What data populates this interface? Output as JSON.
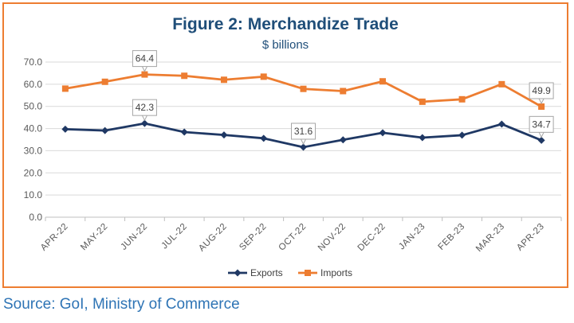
{
  "chart_data": {
    "type": "line",
    "title": "Figure 2: Merchandize Trade",
    "subtitle": "$ billions",
    "categories": [
      "APR-22",
      "MAY-22",
      "JUN-22",
      "JUL-22",
      "AUG-22",
      "SEP-22",
      "OCT-22",
      "NOV-22",
      "DEC-22",
      "JAN-23",
      "FEB-23",
      "MAR-23",
      "APR-23"
    ],
    "series": [
      {
        "name": "Exports",
        "color": "#1F3864",
        "marker": "diamond",
        "values": [
          39.7,
          39.1,
          42.3,
          38.4,
          37.1,
          35.6,
          31.6,
          34.9,
          38.1,
          35.9,
          37.0,
          42.0,
          34.7
        ]
      },
      {
        "name": "Imports",
        "color": "#ED7D31",
        "marker": "square",
        "values": [
          58.0,
          61.1,
          64.4,
          63.8,
          62.0,
          63.4,
          57.9,
          56.9,
          61.3,
          52.1,
          53.2,
          60.0,
          49.9
        ]
      }
    ],
    "annotations": [
      {
        "series": 1,
        "index": 2,
        "label": "64.4"
      },
      {
        "series": 0,
        "index": 2,
        "label": "42.3"
      },
      {
        "series": 0,
        "index": 6,
        "label": "31.6"
      },
      {
        "series": 1,
        "index": 12,
        "label": "49.9"
      },
      {
        "series": 0,
        "index": 12,
        "label": "34.7"
      }
    ],
    "yticks": [
      "0.0",
      "10.0",
      "20.0",
      "30.0",
      "40.0",
      "50.0",
      "60.0",
      "70.0"
    ],
    "ylim": [
      0,
      70
    ],
    "grid": true,
    "legend": "bottom"
  },
  "source": "Source: GoI, Ministry of Commerce"
}
